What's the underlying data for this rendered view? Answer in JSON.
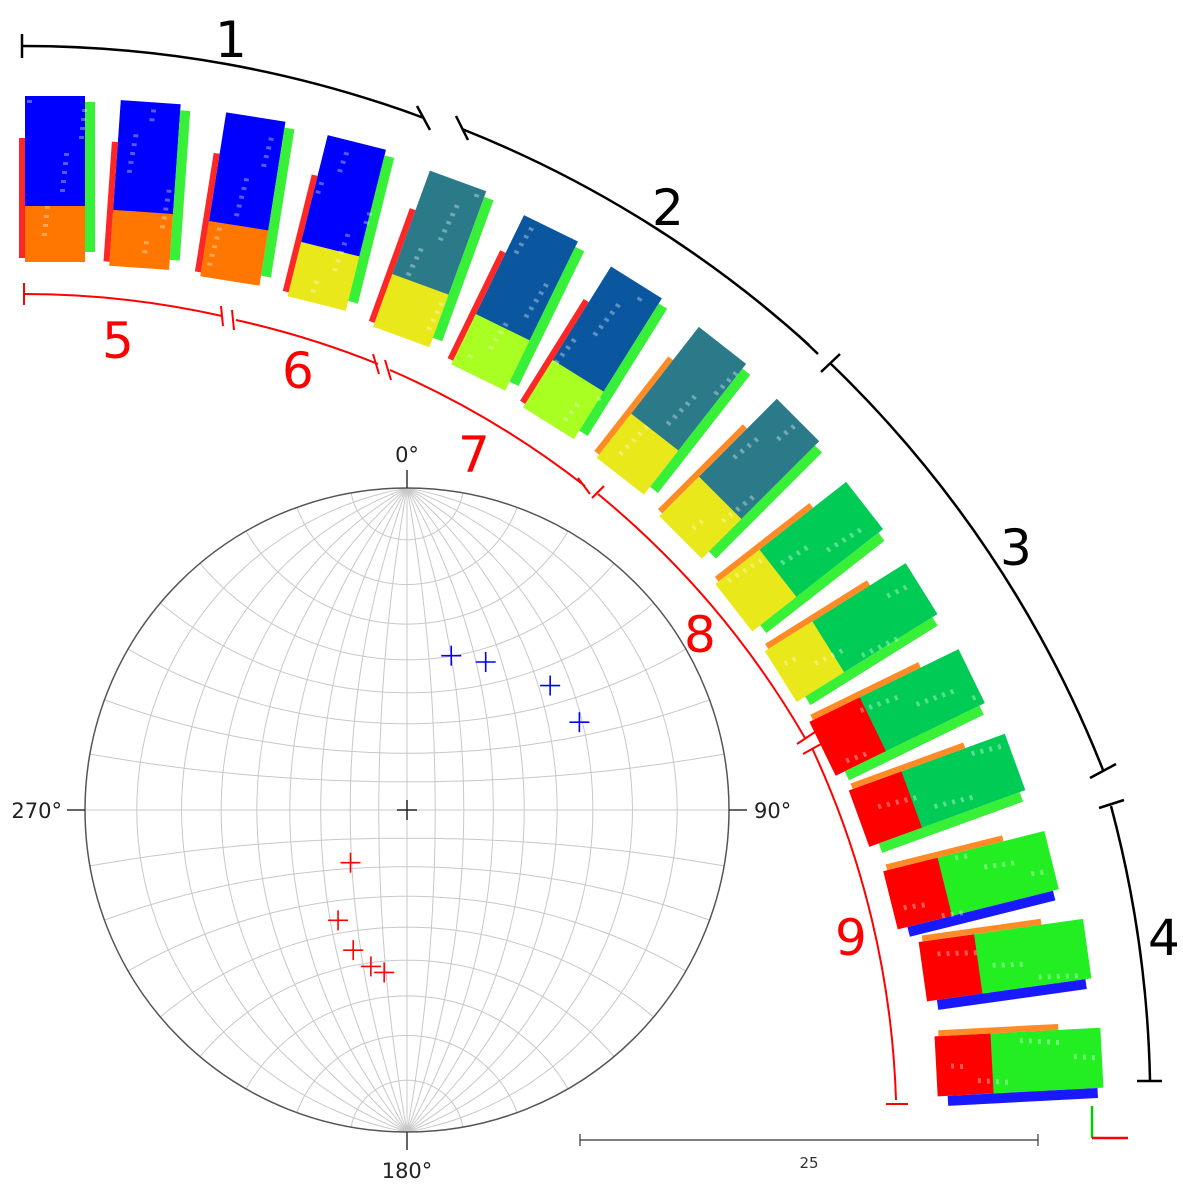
{
  "outer_segments": [
    {
      "label": "1",
      "color": "#000000"
    },
    {
      "label": "2",
      "color": "#000000"
    },
    {
      "label": "3",
      "color": "#000000"
    },
    {
      "label": "4",
      "color": "#000000"
    }
  ],
  "inner_segments": [
    {
      "label": "5",
      "color": "#ff0000"
    },
    {
      "label": "6",
      "color": "#ff0000"
    },
    {
      "label": "7",
      "color": "#ff0000"
    },
    {
      "label": "8",
      "color": "#ff0000"
    },
    {
      "label": "9",
      "color": "#ff0000"
    }
  ],
  "stereonet": {
    "degree_labels": {
      "top": "0°",
      "right": "90°",
      "bottom": "180°",
      "left": "270°"
    },
    "blue_poles": [
      {
        "trend": 16,
        "plunge": 37
      },
      {
        "trend": 28,
        "plunge": 35
      },
      {
        "trend": 49,
        "plunge": 29
      },
      {
        "trend": 63,
        "plunge": 28
      }
    ],
    "red_poles": [
      {
        "trend": 227,
        "plunge": 63
      },
      {
        "trend": 212,
        "plunge": 46
      },
      {
        "trend": 201,
        "plunge": 40
      },
      {
        "trend": 193,
        "plunge": 37
      },
      {
        "trend": 188,
        "plunge": 36
      }
    ],
    "blue_color": "#0000ff",
    "red_color": "#ff0000"
  },
  "scale_bar": {
    "label": "25"
  },
  "colors": {
    "blue": "#0000ff",
    "dark_blue": "#0a57a0",
    "teal": "#2a7a8a",
    "green": "#00cc55",
    "bright_green": "#22ee22",
    "lime": "#aaff22",
    "yellow": "#e8e81a",
    "orange": "#ff7700",
    "red": "#ff0000"
  }
}
